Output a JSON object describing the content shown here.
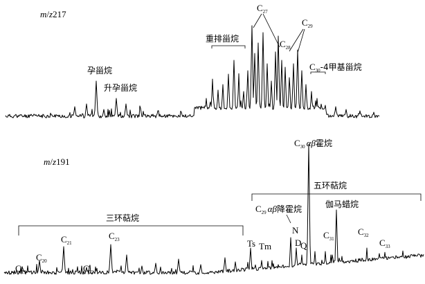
{
  "chart_data": [
    {
      "type": "line",
      "ion_label": {
        "prefix": "m/z",
        "value": "217"
      },
      "ion_label_parts": {
        "m": "m",
        "slash": "/",
        "z": "z",
        "num": "217"
      },
      "xlabel": "",
      "ylabel": "",
      "grid": false,
      "baseline": 6,
      "peaks": [
        {
          "x": 108,
          "h": 18
        },
        {
          "x": 125,
          "h": 22
        },
        {
          "x": 139,
          "h": 55
        },
        {
          "x": 150,
          "h": 14
        },
        {
          "x": 168,
          "h": 30
        },
        {
          "x": 182,
          "h": 22
        },
        {
          "x": 203,
          "h": 16
        },
        {
          "x": 228,
          "h": 12
        },
        {
          "x": 262,
          "h": 10
        },
        {
          "x": 298,
          "h": 30
        },
        {
          "x": 307,
          "h": 55
        },
        {
          "x": 315,
          "h": 42
        },
        {
          "x": 322,
          "h": 50
        },
        {
          "x": 330,
          "h": 65
        },
        {
          "x": 338,
          "h": 85
        },
        {
          "x": 345,
          "h": 60
        },
        {
          "x": 352,
          "h": 40
        },
        {
          "x": 358,
          "h": 70
        },
        {
          "x": 364,
          "h": 135
        },
        {
          "x": 368,
          "h": 95
        },
        {
          "x": 373,
          "h": 110
        },
        {
          "x": 380,
          "h": 125
        },
        {
          "x": 386,
          "h": 80
        },
        {
          "x": 392,
          "h": 55
        },
        {
          "x": 398,
          "h": 95
        },
        {
          "x": 402,
          "h": 120
        },
        {
          "x": 407,
          "h": 85
        },
        {
          "x": 412,
          "h": 75
        },
        {
          "x": 418,
          "h": 60
        },
        {
          "x": 424,
          "h": 80
        },
        {
          "x": 430,
          "h": 100
        },
        {
          "x": 436,
          "h": 70
        },
        {
          "x": 442,
          "h": 50
        },
        {
          "x": 450,
          "h": 40
        },
        {
          "x": 458,
          "h": 30
        },
        {
          "x": 470,
          "h": 20
        },
        {
          "x": 485,
          "h": 18
        },
        {
          "x": 500,
          "h": 14
        },
        {
          "x": 520,
          "h": 12
        },
        {
          "x": 540,
          "h": 10
        }
      ],
      "annotations": [
        {
          "text": "孕甾烷"
        },
        {
          "text": "升孕甾烷"
        },
        {
          "text": "重排甾烷"
        },
        {
          "text": "-4甲基甾烷"
        }
      ],
      "carbon_labels": [
        {
          "C": "C",
          "n": "27"
        },
        {
          "C": "C",
          "n": "28"
        },
        {
          "C": "C",
          "n": "29"
        },
        {
          "C": "C",
          "n": "30"
        }
      ]
    },
    {
      "type": "line",
      "ion_label": {
        "prefix": "m/z",
        "value": "191"
      },
      "ion_label_parts": {
        "m": "m",
        "slash": "/",
        "z": "z",
        "num": "191"
      },
      "xlabel": "",
      "ylabel": "",
      "grid": false,
      "baseline": 6,
      "peaks": [
        {
          "x": 33,
          "h": 10
        },
        {
          "x": 57,
          "h": 22
        },
        {
          "x": 92,
          "h": 42
        },
        {
          "x": 125,
          "h": 12
        },
        {
          "x": 160,
          "h": 45
        },
        {
          "x": 183,
          "h": 30
        },
        {
          "x": 205,
          "h": 14
        },
        {
          "x": 225,
          "h": 18
        },
        {
          "x": 258,
          "h": 24
        },
        {
          "x": 290,
          "h": 16
        },
        {
          "x": 325,
          "h": 26
        },
        {
          "x": 340,
          "h": 20
        },
        {
          "x": 362,
          "h": 40
        },
        {
          "x": 378,
          "h": 22
        },
        {
          "x": 420,
          "h": 55
        },
        {
          "x": 428,
          "h": 40
        },
        {
          "x": 436,
          "h": 30
        },
        {
          "x": 446,
          "h": 190
        },
        {
          "x": 455,
          "h": 35
        },
        {
          "x": 470,
          "h": 35
        },
        {
          "x": 478,
          "h": 30
        },
        {
          "x": 486,
          "h": 95
        },
        {
          "x": 494,
          "h": 28
        },
        {
          "x": 530,
          "h": 40
        },
        {
          "x": 548,
          "h": 32
        },
        {
          "x": 565,
          "h": 20
        },
        {
          "x": 585,
          "h": 22
        },
        {
          "x": 600,
          "h": 30
        }
      ],
      "annotations": [
        {
          "text": "五环萜烷"
        },
        {
          "text": "三环萜烷"
        },
        {
          "text": "伽马蜡烷"
        },
        {
          "text": "降霍烷"
        },
        {
          "text": "霍烷"
        },
        {
          "text": "Ts"
        },
        {
          "text": "Tm"
        },
        {
          "text": "N"
        },
        {
          "text": "D"
        },
        {
          "text": "Q"
        }
      ],
      "carbon_labels": [
        {
          "C": "C",
          "n": "19"
        },
        {
          "C": "C",
          "n": "20"
        },
        {
          "C": "C",
          "n": "21"
        },
        {
          "C": "C",
          "n": "22"
        },
        {
          "C": "C",
          "n": "23"
        },
        {
          "C": "C",
          "n": "29"
        },
        {
          "C": "C",
          "n": "30"
        },
        {
          "C": "C",
          "n": "31"
        },
        {
          "C": "C",
          "n": "32"
        },
        {
          "C": "C",
          "n": "33"
        }
      ],
      "greek": {
        "alpha": "α",
        "beta": "β"
      }
    }
  ]
}
